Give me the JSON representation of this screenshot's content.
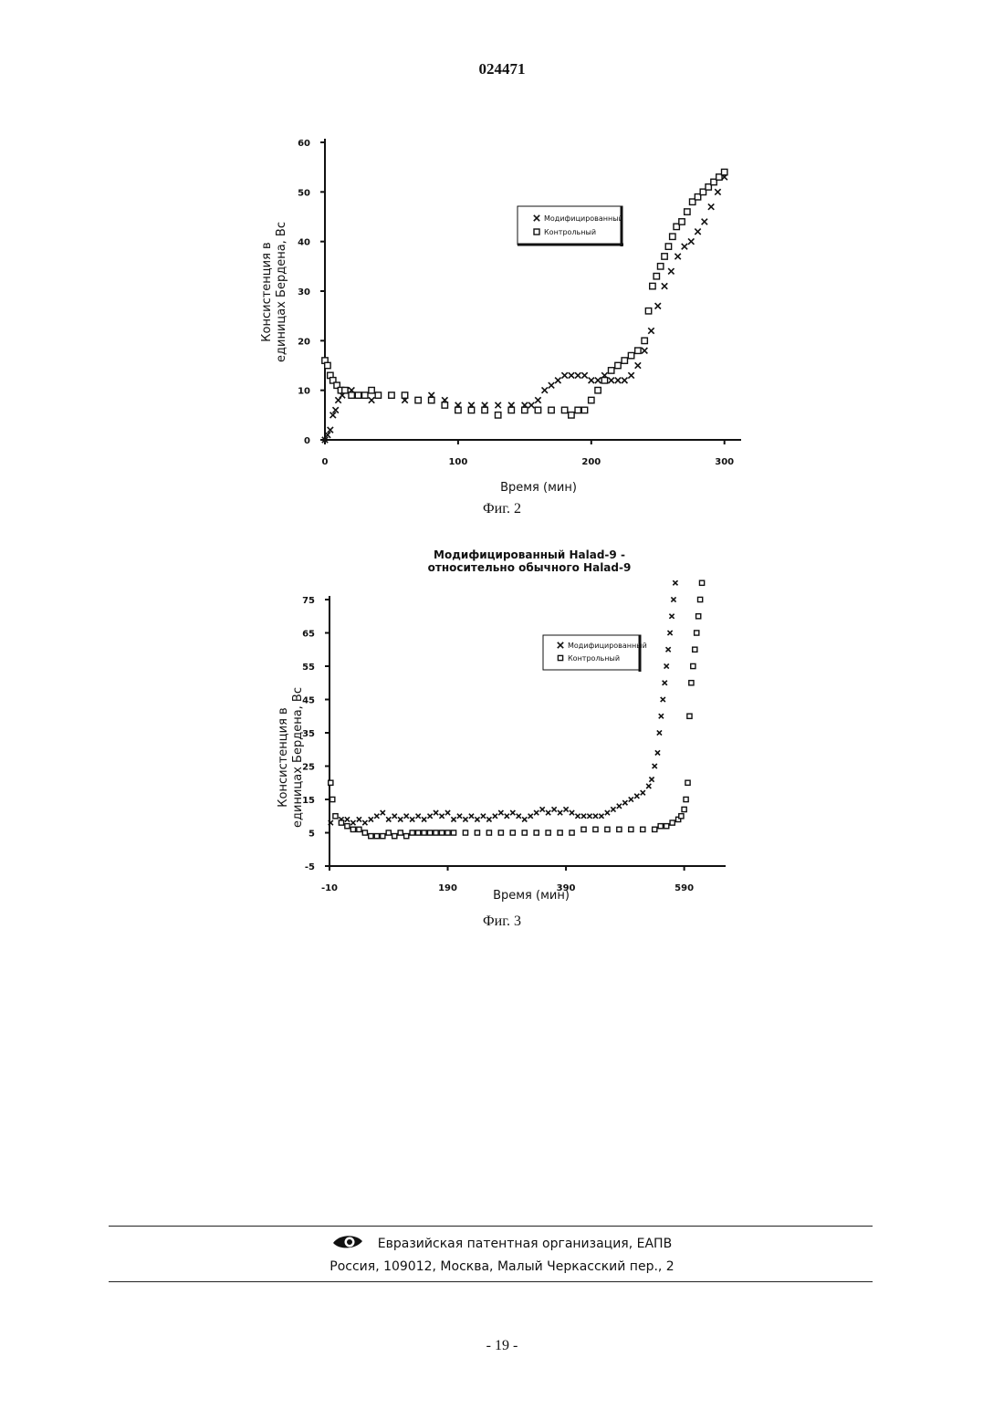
{
  "document_number": "024471",
  "colors": {
    "ink": "#111111"
  },
  "figures": [
    {
      "caption": "Фиг. 2",
      "title_lines": [],
      "ylabel_lines": [
        "Консистенция в",
        "единицах Бердена, Вс"
      ],
      "xlabel": "Время (мин)",
      "x_ticks": [
        "0",
        "100",
        "200",
        "300"
      ],
      "y_ticks": [
        "0",
        "10",
        "20",
        "30",
        "40",
        "50",
        "60"
      ],
      "legend": [
        {
          "marker": "x",
          "label": "Модифицированный"
        },
        {
          "marker": "square",
          "label": "Контрольный"
        }
      ]
    },
    {
      "caption": "Фиг. 3",
      "title_lines": [
        "Модифицированный Halad-9 -",
        "относительно обычного Halad-9"
      ],
      "ylabel_lines": [
        "Консистенция в",
        "единицах Бердена, Вс"
      ],
      "xlabel": "Время (мин)",
      "x_ticks": [
        "-10",
        "190",
        "390",
        "590"
      ],
      "y_ticks": [
        "-5",
        "5",
        "15",
        "25",
        "35",
        "45",
        "55",
        "65",
        "75"
      ],
      "legend": [
        {
          "marker": "x",
          "label": "Модифицированный"
        },
        {
          "marker": "square",
          "label": "Контрольный"
        }
      ]
    }
  ],
  "chart_data": [
    {
      "type": "scatter",
      "title": "",
      "xlabel": "Время (мин)",
      "ylabel": "Консистенция в единицах Бердена, Вс",
      "xlim": [
        0,
        305
      ],
      "ylim": [
        0,
        60
      ],
      "x_ticks": [
        0,
        100,
        200,
        300
      ],
      "y_ticks": [
        0,
        10,
        20,
        30,
        40,
        50,
        60
      ],
      "legend_position": "top-right",
      "grid": false,
      "series": [
        {
          "name": "Модифицированный",
          "marker": "x",
          "points": [
            [
              0,
              0
            ],
            [
              2,
              1
            ],
            [
              4,
              2
            ],
            [
              6,
              5
            ],
            [
              8,
              6
            ],
            [
              10,
              8
            ],
            [
              13,
              9
            ],
            [
              16,
              10
            ],
            [
              20,
              10
            ],
            [
              25,
              9
            ],
            [
              30,
              9
            ],
            [
              35,
              8
            ],
            [
              40,
              9
            ],
            [
              50,
              9
            ],
            [
              60,
              8
            ],
            [
              70,
              8
            ],
            [
              80,
              9
            ],
            [
              90,
              8
            ],
            [
              100,
              7
            ],
            [
              110,
              7
            ],
            [
              120,
              7
            ],
            [
              130,
              7
            ],
            [
              140,
              7
            ],
            [
              150,
              7
            ],
            [
              155,
              7
            ],
            [
              160,
              8
            ],
            [
              165,
              10
            ],
            [
              170,
              11
            ],
            [
              175,
              12
            ],
            [
              180,
              13
            ],
            [
              185,
              13
            ],
            [
              190,
              13
            ],
            [
              195,
              13
            ],
            [
              200,
              12
            ],
            [
              205,
              12
            ],
            [
              210,
              13
            ],
            [
              215,
              12
            ],
            [
              220,
              12
            ],
            [
              225,
              12
            ],
            [
              230,
              13
            ],
            [
              235,
              15
            ],
            [
              240,
              18
            ],
            [
              245,
              22
            ],
            [
              250,
              27
            ],
            [
              255,
              31
            ],
            [
              260,
              34
            ],
            [
              265,
              37
            ],
            [
              270,
              39
            ],
            [
              275,
              40
            ],
            [
              280,
              42
            ],
            [
              285,
              44
            ],
            [
              290,
              47
            ],
            [
              295,
              50
            ],
            [
              300,
              53
            ]
          ]
        },
        {
          "name": "Контрольный",
          "marker": "square",
          "points": [
            [
              0,
              16
            ],
            [
              2,
              15
            ],
            [
              4,
              13
            ],
            [
              6,
              12
            ],
            [
              9,
              11
            ],
            [
              12,
              10
            ],
            [
              15,
              10
            ],
            [
              20,
              9
            ],
            [
              25,
              9
            ],
            [
              30,
              9
            ],
            [
              35,
              10
            ],
            [
              40,
              9
            ],
            [
              50,
              9
            ],
            [
              60,
              9
            ],
            [
              70,
              8
            ],
            [
              80,
              8
            ],
            [
              90,
              7
            ],
            [
              100,
              6
            ],
            [
              110,
              6
            ],
            [
              120,
              6
            ],
            [
              130,
              5
            ],
            [
              140,
              6
            ],
            [
              150,
              6
            ],
            [
              160,
              6
            ],
            [
              170,
              6
            ],
            [
              180,
              6
            ],
            [
              185,
              5
            ],
            [
              190,
              6
            ],
            [
              195,
              6
            ],
            [
              200,
              8
            ],
            [
              205,
              10
            ],
            [
              210,
              12
            ],
            [
              215,
              14
            ],
            [
              220,
              15
            ],
            [
              225,
              16
            ],
            [
              230,
              17
            ],
            [
              235,
              18
            ],
            [
              240,
              20
            ],
            [
              243,
              26
            ],
            [
              246,
              31
            ],
            [
              249,
              33
            ],
            [
              252,
              35
            ],
            [
              255,
              37
            ],
            [
              258,
              39
            ],
            [
              261,
              41
            ],
            [
              264,
              43
            ],
            [
              268,
              44
            ],
            [
              272,
              46
            ],
            [
              276,
              48
            ],
            [
              280,
              49
            ],
            [
              284,
              50
            ],
            [
              288,
              51
            ],
            [
              292,
              52
            ],
            [
              296,
              53
            ],
            [
              300,
              54
            ]
          ]
        }
      ]
    },
    {
      "type": "scatter",
      "title": "Модифицированный Halad-9 - относительно обычного Halad-9",
      "xlabel": "Время (мин)",
      "ylabel": "Консистенция в единицах Бердена, Вс",
      "xlim": [
        -10,
        640
      ],
      "ylim": [
        -5,
        75
      ],
      "x_ticks": [
        -10,
        190,
        390,
        590
      ],
      "y_ticks": [
        -5,
        5,
        15,
        25,
        35,
        45,
        55,
        65,
        75
      ],
      "legend_position": "top-right",
      "grid": false,
      "series": [
        {
          "name": "Модифицированный",
          "marker": "x",
          "points": [
            [
              -8,
              8
            ],
            [
              0,
              10
            ],
            [
              10,
              9
            ],
            [
              20,
              9
            ],
            [
              30,
              8
            ],
            [
              40,
              9
            ],
            [
              50,
              8
            ],
            [
              60,
              9
            ],
            [
              70,
              10
            ],
            [
              80,
              11
            ],
            [
              90,
              9
            ],
            [
              100,
              10
            ],
            [
              110,
              9
            ],
            [
              120,
              10
            ],
            [
              130,
              9
            ],
            [
              140,
              10
            ],
            [
              150,
              9
            ],
            [
              160,
              10
            ],
            [
              170,
              11
            ],
            [
              180,
              10
            ],
            [
              190,
              11
            ],
            [
              200,
              9
            ],
            [
              210,
              10
            ],
            [
              220,
              9
            ],
            [
              230,
              10
            ],
            [
              240,
              9
            ],
            [
              250,
              10
            ],
            [
              260,
              9
            ],
            [
              270,
              10
            ],
            [
              280,
              11
            ],
            [
              290,
              10
            ],
            [
              300,
              11
            ],
            [
              310,
              10
            ],
            [
              320,
              9
            ],
            [
              330,
              10
            ],
            [
              340,
              11
            ],
            [
              350,
              12
            ],
            [
              360,
              11
            ],
            [
              370,
              12
            ],
            [
              380,
              11
            ],
            [
              390,
              12
            ],
            [
              400,
              11
            ],
            [
              410,
              10
            ],
            [
              420,
              10
            ],
            [
              430,
              10
            ],
            [
              440,
              10
            ],
            [
              450,
              10
            ],
            [
              460,
              11
            ],
            [
              470,
              12
            ],
            [
              480,
              13
            ],
            [
              490,
              14
            ],
            [
              500,
              15
            ],
            [
              510,
              16
            ],
            [
              520,
              17
            ],
            [
              530,
              19
            ],
            [
              535,
              21
            ],
            [
              540,
              25
            ],
            [
              545,
              29
            ],
            [
              548,
              35
            ],
            [
              551,
              40
            ],
            [
              554,
              45
            ],
            [
              557,
              50
            ],
            [
              560,
              55
            ],
            [
              563,
              60
            ],
            [
              566,
              65
            ],
            [
              569,
              70
            ],
            [
              572,
              75
            ],
            [
              575,
              80
            ]
          ]
        },
        {
          "name": "Контрольный",
          "marker": "square",
          "points": [
            [
              -8,
              20
            ],
            [
              -5,
              15
            ],
            [
              0,
              10
            ],
            [
              10,
              8
            ],
            [
              20,
              7
            ],
            [
              30,
              6
            ],
            [
              40,
              6
            ],
            [
              50,
              5
            ],
            [
              60,
              4
            ],
            [
              70,
              4
            ],
            [
              80,
              4
            ],
            [
              90,
              5
            ],
            [
              100,
              4
            ],
            [
              110,
              5
            ],
            [
              120,
              4
            ],
            [
              130,
              5
            ],
            [
              140,
              5
            ],
            [
              150,
              5
            ],
            [
              160,
              5
            ],
            [
              170,
              5
            ],
            [
              180,
              5
            ],
            [
              190,
              5
            ],
            [
              200,
              5
            ],
            [
              220,
              5
            ],
            [
              240,
              5
            ],
            [
              260,
              5
            ],
            [
              280,
              5
            ],
            [
              300,
              5
            ],
            [
              320,
              5
            ],
            [
              340,
              5
            ],
            [
              360,
              5
            ],
            [
              380,
              5
            ],
            [
              400,
              5
            ],
            [
              420,
              6
            ],
            [
              440,
              6
            ],
            [
              460,
              6
            ],
            [
              480,
              6
            ],
            [
              500,
              6
            ],
            [
              520,
              6
            ],
            [
              540,
              6
            ],
            [
              550,
              7
            ],
            [
              560,
              7
            ],
            [
              570,
              8
            ],
            [
              580,
              9
            ],
            [
              585,
              10
            ],
            [
              590,
              12
            ],
            [
              593,
              15
            ],
            [
              596,
              20
            ],
            [
              599,
              40
            ],
            [
              602,
              50
            ],
            [
              605,
              55
            ],
            [
              608,
              60
            ],
            [
              611,
              65
            ],
            [
              614,
              70
            ],
            [
              617,
              75
            ],
            [
              620,
              80
            ]
          ]
        }
      ]
    }
  ],
  "footer": {
    "organization": "Евразийская патентная организация, ЕАПВ",
    "address": "Россия, 109012, Москва, Малый Черкасский пер., 2"
  },
  "page_number": "- 19 -"
}
